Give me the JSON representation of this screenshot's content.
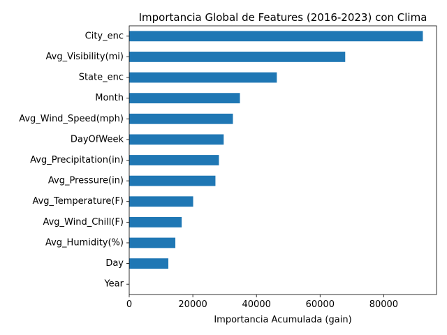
{
  "chart_data": {
    "type": "bar",
    "orientation": "horizontal",
    "title": "Importancia Global de Features (2016-2023) con Clima",
    "xlabel": "Importancia Acumulada (gain)",
    "ylabel": "",
    "xlim": [
      0,
      96600
    ],
    "xticks": [
      0,
      20000,
      40000,
      60000,
      80000
    ],
    "xtick_labels": [
      "0",
      "20000",
      "40000",
      "60000",
      "80000"
    ],
    "categories": [
      "City_enc",
      "Avg_Visibility(mi)",
      "State_enc",
      "Month",
      "Avg_Wind_Speed(mph)",
      "DayOfWeek",
      "Avg_Precipitation(in)",
      "Avg_Pressure(in)",
      "Avg_Temperature(F)",
      "Avg_Wind_Chill(F)",
      "Avg_Humidity(%)",
      "Day",
      "Year"
    ],
    "values": [
      92300,
      67900,
      46400,
      34800,
      32600,
      29700,
      28200,
      27100,
      20100,
      16500,
      14500,
      12300,
      0
    ],
    "bar_color": "#1f77b4",
    "grid": false,
    "legend": "none"
  }
}
